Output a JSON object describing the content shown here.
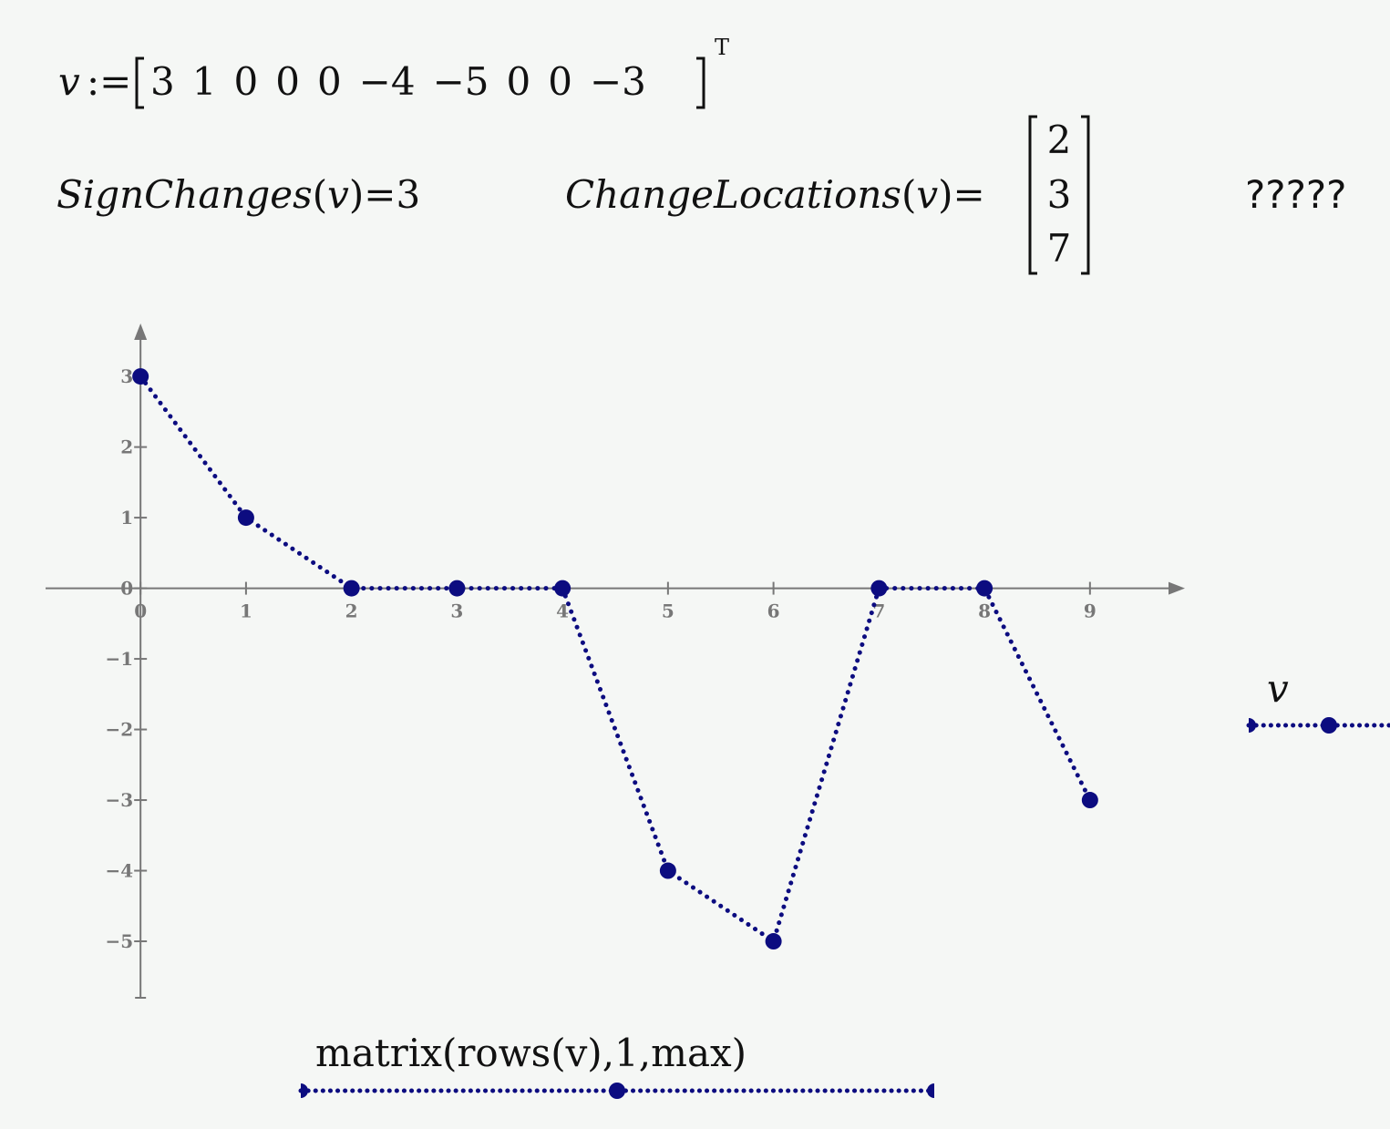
{
  "worksheet": {
    "definition": {
      "lhs": "v",
      "op": ":=",
      "elements": [
        "3",
        "1",
        "0",
        "0",
        "0",
        "−4",
        "−5",
        "0",
        "0",
        "−3"
      ],
      "transpose": "T"
    },
    "sign_changes": {
      "function": "SignChanges",
      "arg": "v",
      "equals": "=",
      "result": "3"
    },
    "change_locations": {
      "function": "ChangeLocations",
      "arg": "v",
      "equals": "=",
      "result": [
        "2",
        "3",
        "7"
      ]
    },
    "note": "?????"
  },
  "chart_data": {
    "type": "line",
    "x": [
      0,
      1,
      2,
      3,
      4,
      5,
      6,
      7,
      8,
      9
    ],
    "series": [
      {
        "name": "v",
        "color": "#0c0c80",
        "values": [
          3,
          1,
          0,
          0,
          0,
          -4,
          -5,
          0,
          0,
          -3
        ]
      }
    ],
    "xlabel": "matrix(rows(v),1,max)",
    "ylabel": "v",
    "xlim": [
      -0.9,
      9.9
    ],
    "ylim": [
      -5.8,
      3.75
    ],
    "xticks": [
      0,
      1,
      2,
      3,
      4,
      5,
      6,
      7,
      8,
      9
    ],
    "yticks": [
      {
        "value": -5,
        "label": "−5"
      },
      {
        "value": -4,
        "label": "−4"
      },
      {
        "value": -3,
        "label": "−3"
      },
      {
        "value": -2,
        "label": "−2"
      },
      {
        "value": -1,
        "label": "−1"
      },
      0,
      1,
      2,
      3
    ]
  }
}
